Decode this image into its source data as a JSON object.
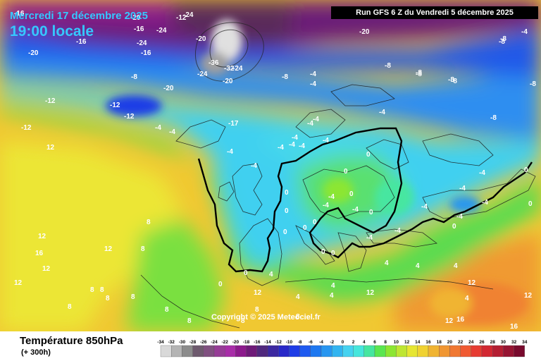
{
  "header": {
    "date_text": "Mercredi 17 décembre 2025",
    "time_text": "19:00 locale",
    "run_text": "Run GFS 6 Z du Vendredi 5 décembre 2025"
  },
  "map": {
    "copyright": "Copyright © 2025 Meteociel.fr",
    "labels": [
      {
        "t": "-20",
        "c": "#fff"
      },
      {
        "t": "-16",
        "c": "#fff"
      },
      {
        "t": "-16",
        "c": "#fff"
      },
      {
        "t": "-24",
        "c": "#fff"
      },
      {
        "t": "-24",
        "c": "#fff"
      },
      {
        "t": "-20",
        "c": "#fff"
      },
      {
        "t": "-16",
        "c": "#fff"
      },
      {
        "t": "-20",
        "c": "#fff"
      },
      {
        "t": "-24",
        "c": "#fff"
      },
      {
        "t": "-32",
        "c": "#fff"
      },
      {
        "t": "-36",
        "c": "#fff"
      },
      {
        "t": "-24",
        "c": "#fff"
      },
      {
        "t": "-12",
        "c": "#fff"
      },
      {
        "t": "-20",
        "c": "#fff"
      },
      {
        "t": "-16",
        "c": "#fff"
      },
      {
        "t": "-20",
        "c": "#fff"
      },
      {
        "t": "-24",
        "c": "#fff"
      },
      {
        "t": "-20",
        "c": "#fff"
      },
      {
        "t": "-8",
        "c": "#fff"
      },
      {
        "t": "-4",
        "c": "#fff"
      },
      {
        "t": "-4",
        "c": "#fff"
      },
      {
        "t": "-8",
        "c": "#fff"
      },
      {
        "t": "-12",
        "c": "#fff"
      },
      {
        "t": "-8",
        "c": "#fff"
      },
      {
        "t": "-12",
        "c": "#fff"
      },
      {
        "t": "-8",
        "c": "#fff"
      },
      {
        "t": "-12",
        "c": "#fff"
      },
      {
        "t": "-12",
        "c": "#fff"
      },
      {
        "t": "-4",
        "c": "#fff"
      },
      {
        "t": "-4",
        "c": "#fff"
      },
      {
        "t": "-17",
        "c": "#fff"
      },
      {
        "t": "-4",
        "c": "#fff"
      },
      {
        "t": "-4",
        "c": "#fff"
      },
      {
        "t": "-4",
        "c": "#fff"
      },
      {
        "t": "-8",
        "c": "#fff"
      },
      {
        "t": "-8",
        "c": "#fff"
      },
      {
        "t": "-8",
        "c": "#fff"
      },
      {
        "t": "-8",
        "c": "#fff"
      },
      {
        "t": "-8",
        "c": "#fff"
      },
      {
        "t": "-4",
        "c": "#fff"
      },
      {
        "t": "-8",
        "c": "#fff"
      },
      {
        "t": "-4",
        "c": "#fff"
      },
      {
        "t": "-4",
        "c": "#fff"
      },
      {
        "t": "-4",
        "c": "#fff"
      },
      {
        "t": "-4",
        "c": "#fff"
      },
      {
        "t": "-4",
        "c": "#fff"
      },
      {
        "t": "-8",
        "c": "#fff"
      },
      {
        "t": "-4",
        "c": "#fff"
      },
      {
        "t": "-4",
        "c": "#fff"
      },
      {
        "t": "-4",
        "c": "#fff"
      },
      {
        "t": "-4",
        "c": "#fff"
      },
      {
        "t": "-4",
        "c": "#fff"
      },
      {
        "t": "-4",
        "c": "#fff"
      },
      {
        "t": "-4",
        "c": "#fff"
      },
      {
        "t": "-4",
        "c": "#fff"
      },
      {
        "t": "-4",
        "c": "#fff"
      },
      {
        "t": "-4",
        "c": "#fff"
      },
      {
        "t": "-4",
        "c": "#fff"
      },
      {
        "t": "-4",
        "c": "#fff"
      },
      {
        "t": "0",
        "c": "#fff"
      },
      {
        "t": "0",
        "c": "#fff"
      },
      {
        "t": "0",
        "c": "#fff"
      },
      {
        "t": "0",
        "c": "#fff"
      },
      {
        "t": "0",
        "c": "#fff"
      },
      {
        "t": "0",
        "c": "#fff"
      },
      {
        "t": "0",
        "c": "#fff"
      },
      {
        "t": "0",
        "c": "#fff"
      },
      {
        "t": "0",
        "c": "#fff"
      },
      {
        "t": "0",
        "c": "#fff"
      },
      {
        "t": "0",
        "c": "#fff"
      },
      {
        "t": "0",
        "c": "#fff"
      },
      {
        "t": "0",
        "c": "#fff"
      },
      {
        "t": "0",
        "c": "#fff"
      },
      {
        "t": "0",
        "c": "#fff"
      },
      {
        "t": "0",
        "c": "#fff"
      },
      {
        "t": "4",
        "c": "#fff"
      },
      {
        "t": "4",
        "c": "#fff"
      },
      {
        "t": "4",
        "c": "#fff"
      },
      {
        "t": "4",
        "c": "#fff"
      },
      {
        "t": "4",
        "c": "#fff"
      },
      {
        "t": "4",
        "c": "#fff"
      },
      {
        "t": "4",
        "c": "#fff"
      },
      {
        "t": "4",
        "c": "#fff"
      },
      {
        "t": "8",
        "c": "#fff"
      },
      {
        "t": "8",
        "c": "#fff"
      },
      {
        "t": "8",
        "c": "#fff"
      },
      {
        "t": "8",
        "c": "#fff"
      },
      {
        "t": "8",
        "c": "#fff"
      },
      {
        "t": "8",
        "c": "#fff"
      },
      {
        "t": "8",
        "c": "#fff"
      },
      {
        "t": "8",
        "c": "#fff"
      },
      {
        "t": "8",
        "c": "#fff"
      },
      {
        "t": "8",
        "c": "#fff"
      },
      {
        "t": "8",
        "c": "#fff"
      },
      {
        "t": "8",
        "c": "#fff"
      },
      {
        "t": "12",
        "c": "#fff"
      },
      {
        "t": "12",
        "c": "#fff"
      },
      {
        "t": "12",
        "c": "#fff"
      },
      {
        "t": "12",
        "c": "#fff"
      },
      {
        "t": "12",
        "c": "#fff"
      },
      {
        "t": "12",
        "c": "#fff"
      },
      {
        "t": "12",
        "c": "#fff"
      },
      {
        "t": "12",
        "c": "#fff"
      },
      {
        "t": "12",
        "c": "#fff"
      },
      {
        "t": "12",
        "c": "#fff"
      },
      {
        "t": "16",
        "c": "#fff"
      },
      {
        "t": "16",
        "c": "#fff"
      },
      {
        "t": "16",
        "c": "#fff"
      }
    ]
  },
  "footer": {
    "parameter": "Température 850hPa",
    "lead_time": "(+ 300h)"
  },
  "legend": {
    "values": [
      "-34",
      "-32",
      "-30",
      "-28",
      "-26",
      "-24",
      "-22",
      "-20",
      "-18",
      "-16",
      "-14",
      "-12",
      "-10",
      "-8",
      "-6",
      "-4",
      "-2",
      "0",
      "2",
      "4",
      "6",
      "8",
      "10",
      "12",
      "14",
      "16",
      "18",
      "20",
      "22",
      "24",
      "26",
      "28",
      "30",
      "32",
      "34"
    ],
    "colors": [
      "#d9d9d9",
      "#b4b4b4",
      "#8c8c8c",
      "#6e5a6e",
      "#805080",
      "#963c96",
      "#a82da8",
      "#8c1a8c",
      "#6e1a78",
      "#50287d",
      "#3c28a0",
      "#2828c8",
      "#1e3ce6",
      "#1e5af0",
      "#1e78f0",
      "#2896f0",
      "#32b4f0",
      "#46d2f0",
      "#46e6dc",
      "#46e6a0",
      "#5ae650",
      "#8ce632",
      "#bee632",
      "#e6e632",
      "#f0d232",
      "#f0b432",
      "#f09632",
      "#f07832",
      "#f05a32",
      "#e63c32",
      "#d22832",
      "#b41e32",
      "#961432",
      "#780a2d"
    ]
  }
}
